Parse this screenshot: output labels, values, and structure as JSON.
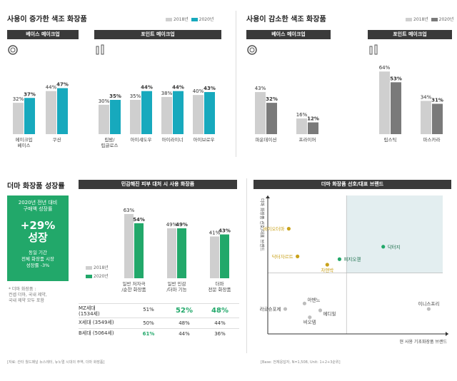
{
  "colors": {
    "gray": "#cfcfcf",
    "teal": "#17a9bd",
    "dark": "#7a7a7a",
    "green": "#22a86a",
    "gold": "#c9a21a",
    "light_gray": "#dddddd",
    "header": "#3a3a3a"
  },
  "panels": {
    "increased": {
      "title": "사용이 증가한 색조 화장품",
      "legend": [
        "2018년",
        "2020년"
      ],
      "base_label": "베이스 메이크업",
      "point_label": "포인트 메이크업"
    },
    "decreased": {
      "title": "사용이 감소한 색조 화장품",
      "legend": [
        "2018년",
        "2020년"
      ],
      "base_label": "베이스 메이크업",
      "point_label": "포인트 메이크업"
    },
    "derma": {
      "title": "더마 화장품 성장률",
      "box_top": [
        "2020년 전년 대비",
        "구매액 성장률"
      ],
      "big": [
        "+29%",
        "성장"
      ],
      "box_bottom": [
        "동일 기간",
        "전체 화장품 시장",
        "성장률 -3%"
      ],
      "note": [
        "* 더마 화장품 :",
        "컨셉 더마, 국내 제약,",
        "국내 제약 모두 포함"
      ]
    },
    "sensitive": {
      "title": "민감해진 피부 대처 시 사용 화장품",
      "legend": [
        "2018년",
        "2020년"
      ]
    },
    "brands": {
      "title": "더마 화장품 선호/대표 브랜드",
      "x_axis": "현 사용 기초화장품 브랜드",
      "y_axis": "더마 화장품 선호/대표 브랜드"
    }
  },
  "sources": {
    "left": "[자료: 칸타 월드패널 뉴스레터, 뉴노멀 시대의 주역, 더마 화장품]",
    "right": "[Base: 전체응답자, N=1,508, Unit: 1+2+3순위]"
  },
  "chart_data": [
    {
      "id": "increased-base",
      "type": "bar",
      "categories": [
        "메이크업\n베이스",
        "쿠션"
      ],
      "series": [
        {
          "name": "2018년",
          "values": [
            32,
            44
          ]
        },
        {
          "name": "2020년",
          "values": [
            37,
            47
          ]
        }
      ],
      "ylim": [
        0,
        70
      ]
    },
    {
      "id": "increased-point",
      "type": "bar",
      "categories": [
        "립밤/\n립글로스",
        "아이섀도우",
        "아이라이너",
        "아이브로우"
      ],
      "series": [
        {
          "name": "2018년",
          "values": [
            30,
            35,
            38,
            40
          ]
        },
        {
          "name": "2020년",
          "values": [
            35,
            44,
            44,
            43
          ]
        }
      ],
      "ylim": [
        0,
        70
      ]
    },
    {
      "id": "decreased-base",
      "type": "bar",
      "categories": [
        "파운데이션",
        "프라이머"
      ],
      "series": [
        {
          "name": "2018년",
          "values": [
            43,
            16
          ]
        },
        {
          "name": "2020년",
          "values": [
            32,
            12
          ]
        }
      ],
      "ylim": [
        0,
        70
      ]
    },
    {
      "id": "decreased-point",
      "type": "bar",
      "categories": [
        "립스틱",
        "마스카라"
      ],
      "series": [
        {
          "name": "2018년",
          "values": [
            64,
            34
          ]
        },
        {
          "name": "2020년",
          "values": [
            53,
            31
          ]
        }
      ],
      "ylim": [
        0,
        70
      ]
    },
    {
      "id": "sensitive",
      "type": "bar",
      "categories": [
        "일반 저자극\n/순한 화장품",
        "일반 민감\n/더마 기능",
        "더마\n전문 화장품"
      ],
      "series": [
        {
          "name": "2018년",
          "values": [
            63,
            49,
            41
          ]
        },
        {
          "name": "2020년",
          "values": [
            54,
            49,
            43
          ]
        }
      ],
      "ylim": [
        0,
        70
      ]
    },
    {
      "id": "sensitive-table",
      "type": "table",
      "rows": [
        {
          "label": "MZ세대\n(1534세)",
          "values": [
            "51%",
            "52%",
            "48%"
          ],
          "highlight": [
            false,
            true,
            true
          ]
        },
        {
          "label": "X세대 (3549세)",
          "values": [
            "50%",
            "48%",
            "44%"
          ],
          "highlight": [
            false,
            false,
            false
          ]
        },
        {
          "label": "B세대 (5064세)",
          "values": [
            "61%",
            "44%",
            "36%"
          ],
          "highlight": [
            true,
            false,
            false
          ]
        }
      ]
    },
    {
      "id": "brands",
      "type": "scatter",
      "points": [
        {
          "name": "바이오더마",
          "x": 12,
          "y": 76,
          "group": "gold"
        },
        {
          "name": "닥터지",
          "x": 66,
          "y": 63,
          "group": "green"
        },
        {
          "name": "피지오겔",
          "x": 41,
          "y": 54,
          "group": "green"
        },
        {
          "name": "닥터자르트",
          "x": 17,
          "y": 56,
          "group": "gold"
        },
        {
          "name": "차앤박",
          "x": 34,
          "y": 50,
          "group": "gold"
        },
        {
          "name": "아벤느",
          "x": 21,
          "y": 22,
          "group": "gray"
        },
        {
          "name": "라로슈포제",
          "x": 10,
          "y": 18,
          "group": "gray"
        },
        {
          "name": "메디힐",
          "x": 30,
          "y": 17,
          "group": "gray"
        },
        {
          "name": "비오템",
          "x": 24,
          "y": 12,
          "group": "gray"
        },
        {
          "name": "이니스프리",
          "x": 92,
          "y": 18,
          "group": "gray"
        }
      ]
    }
  ]
}
